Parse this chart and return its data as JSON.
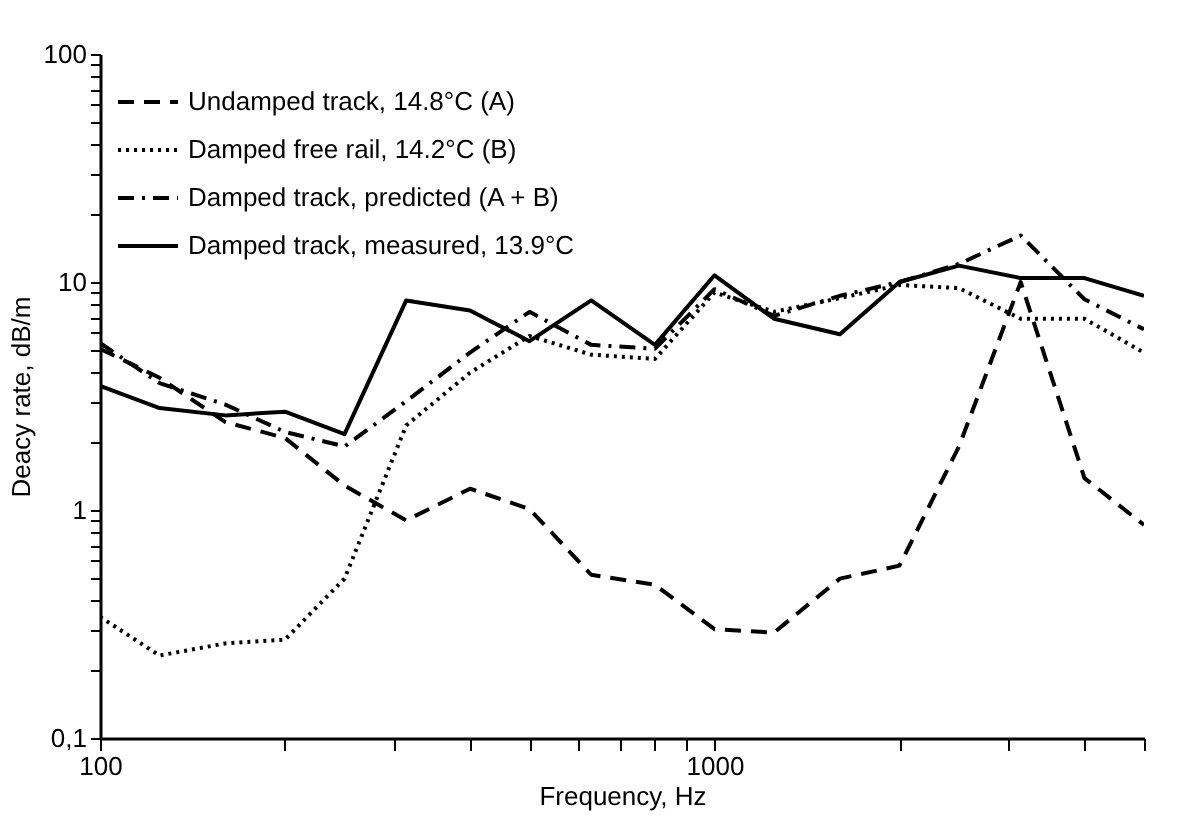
{
  "chart_data": {
    "type": "line",
    "xlabel": "Frequency, Hz",
    "ylabel": "Deacy rate, dB/m",
    "x": [
      100,
      125,
      160,
      200,
      250,
      315,
      400,
      500,
      630,
      800,
      1000,
      1250,
      1600,
      2000,
      2500,
      3150,
      4000,
      5000
    ],
    "series": [
      {
        "name": "Undamped track, 14.8°C (A)",
        "color": "#000000",
        "line_style": "dashed",
        "values": [
          5.1,
          3.8,
          2.43,
          2.07,
          1.28,
          0.9,
          1.24,
          1.01,
          0.52,
          0.47,
          0.3,
          0.29,
          0.5,
          0.57,
          1.9,
          10,
          1.38,
          0.86
        ]
      },
      {
        "name": "Damped free rail, 14.2°C (B)",
        "color": "#000000",
        "line_style": "dotted",
        "values": [
          0.34,
          0.23,
          0.26,
          0.27,
          0.5,
          2.35,
          4.0,
          5.8,
          4.8,
          4.6,
          9.0,
          7.4,
          8.5,
          9.7,
          9.4,
          6.9,
          6.9,
          4.9
        ]
      },
      {
        "name": "Damped track, predicted (A + B)",
        "color": "#000000",
        "line_style": "dashdot",
        "values": [
          5.4,
          3.6,
          2.9,
          2.2,
          1.9,
          3.0,
          4.9,
          7.4,
          5.3,
          5.1,
          9.3,
          7.1,
          8.7,
          10,
          12,
          16,
          8.4,
          6.2
        ]
      },
      {
        "name": "Damped track, measured, 13.9°C",
        "color": "#000000",
        "line_style": "solid",
        "values": [
          3.5,
          2.8,
          2.6,
          2.7,
          2.15,
          8.3,
          7.5,
          5.5,
          8.3,
          5.3,
          10.7,
          6.9,
          5.9,
          10,
          11.8,
          10.4,
          10.4,
          8.7
        ]
      }
    ],
    "log": "xy",
    "xlim": [
      100,
      5000
    ],
    "ylim": [
      0.1,
      100
    ],
    "xticks": [
      100,
      {
        "value": 200,
        "label": null
      },
      {
        "value": 300,
        "label": null
      },
      {
        "value": 400,
        "label": null
      },
      {
        "value": 500,
        "label": null
      },
      {
        "value": 600,
        "label": null
      },
      {
        "value": 700,
        "label": null
      },
      {
        "value": 800,
        "label": null
      },
      {
        "value": 900,
        "label": null
      },
      1000,
      {
        "value": 2000,
        "label": null
      },
      {
        "value": 3000,
        "label": null
      },
      {
        "value": 4000,
        "label": null
      },
      {
        "value": 5000,
        "label": null
      }
    ],
    "yticks": [
      {
        "value": 0.1,
        "label": "0,1"
      },
      {
        "value": 0.2,
        "label": null
      },
      {
        "value": 0.3,
        "label": null
      },
      {
        "value": 0.4,
        "label": null
      },
      {
        "value": 0.5,
        "label": null
      },
      {
        "value": 0.6,
        "label": null
      },
      {
        "value": 0.7,
        "label": null
      },
      {
        "value": 0.8,
        "label": null
      },
      {
        "value": 0.9,
        "label": null
      },
      1,
      {
        "value": 2,
        "label": null
      },
      {
        "value": 3,
        "label": null
      },
      {
        "value": 4,
        "label": null
      },
      {
        "value": 5,
        "label": null
      },
      {
        "value": 6,
        "label": null
      },
      {
        "value": 7,
        "label": null
      },
      {
        "value": 8,
        "label": null
      },
      {
        "value": 9,
        "label": null
      },
      10,
      {
        "value": 20,
        "label": null
      },
      {
        "value": 30,
        "label": null
      },
      {
        "value": 40,
        "label": null
      },
      {
        "value": 50,
        "label": null
      },
      {
        "value": 60,
        "label": null
      },
      {
        "value": 70,
        "label": null
      },
      {
        "value": 80,
        "label": null
      },
      {
        "value": 90,
        "label": null
      },
      100
    ],
    "grid": false,
    "legend": "top left",
    "marker": "none"
  }
}
